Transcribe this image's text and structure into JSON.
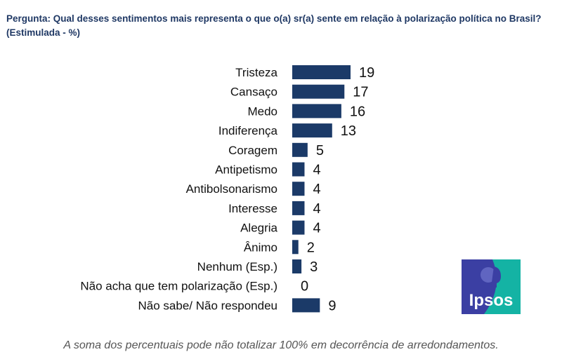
{
  "title": "Pergunta: Qual desses sentimentos mais representa o que o(a) sr(a) sente em relação à polarização política no Brasil?",
  "subtitle": "(Estimulada - %)",
  "footnote": "A soma dos percentuais pode não totalizar 100% em decorrência de arredondamentos.",
  "logo": {
    "text": "Ipsos",
    "colors": [
      "#3b3fa3",
      "#14b3a4"
    ]
  },
  "chart_data": {
    "type": "bar",
    "orientation": "horizontal",
    "categories": [
      "Tristeza",
      "Cansaço",
      "Medo",
      "Indiferença",
      "Coragem",
      "Antipetismo",
      "Antibolsonarismo",
      "Interesse",
      "Alegria",
      "Ânimo",
      "Nenhum (Esp.)",
      "Não acha que tem polarização (Esp.)",
      "Não sabe/ Não respondeu"
    ],
    "values": [
      19,
      17,
      16,
      13,
      5,
      4,
      4,
      4,
      4,
      2,
      3,
      0,
      9
    ],
    "labels": [
      "19",
      "17",
      "16",
      "13",
      "5",
      "4",
      "4",
      "4",
      "4",
      "2",
      "3",
      "0",
      "9"
    ],
    "unit": "%",
    "bar_color": "#1b3a68",
    "grid": false,
    "xlim": [
      0,
      19
    ]
  }
}
